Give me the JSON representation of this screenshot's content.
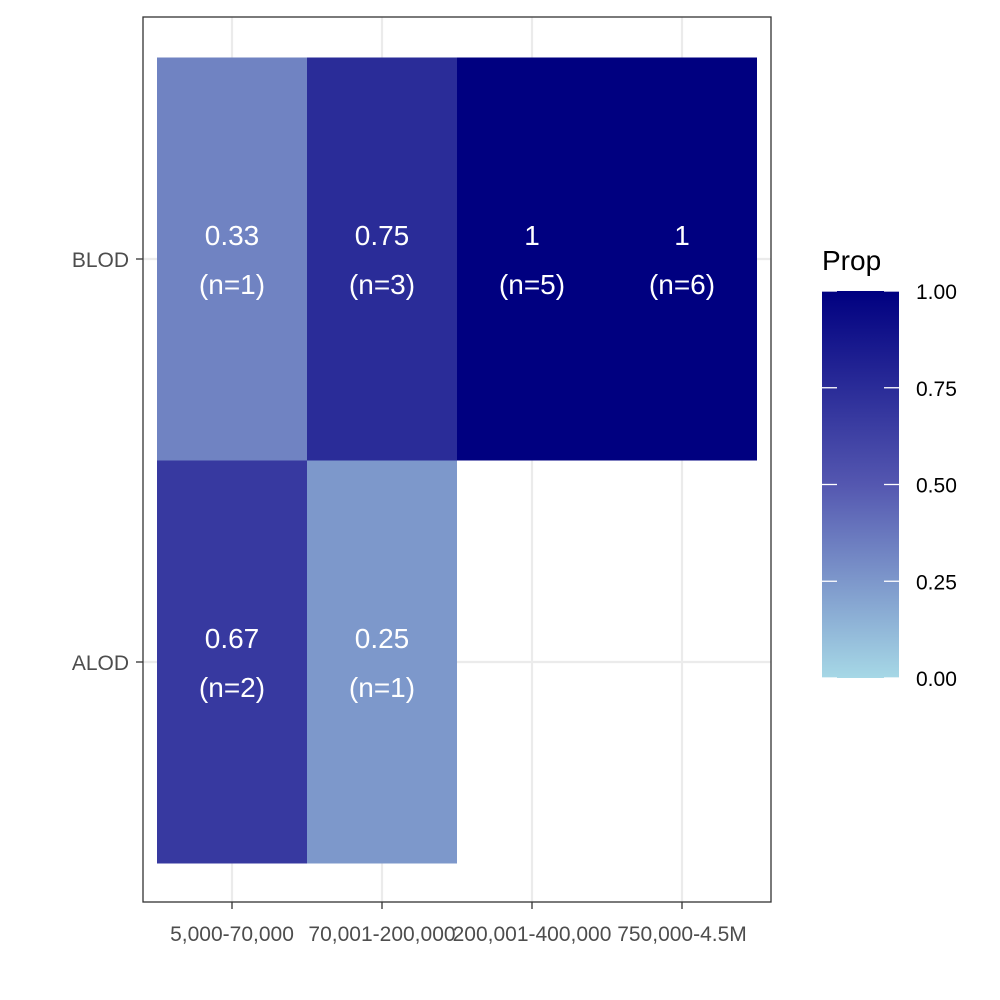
{
  "chart_data": {
    "type": "heatmap",
    "title": "",
    "xlabel": "",
    "ylabel": "",
    "x_categories": [
      "5,000-70,000",
      "70,001-200,000",
      "200,001-400,000",
      "750,000-4.5M"
    ],
    "y_categories": [
      "ALOD",
      "BLOD"
    ],
    "cells": [
      {
        "x": "5,000-70,000",
        "y": "BLOD",
        "prop": 0.33,
        "value_label": "0.33",
        "n_label": "(n=1)"
      },
      {
        "x": "70,001-200,000",
        "y": "BLOD",
        "prop": 0.75,
        "value_label": "0.75",
        "n_label": "(n=3)"
      },
      {
        "x": "200,001-400,000",
        "y": "BLOD",
        "prop": 1,
        "value_label": "1",
        "n_label": "(n=5)"
      },
      {
        "x": "750,000-4.5M",
        "y": "BLOD",
        "prop": 1,
        "value_label": "1",
        "n_label": "(n=6)"
      },
      {
        "x": "5,000-70,000",
        "y": "ALOD",
        "prop": 0.67,
        "value_label": "0.67",
        "n_label": "(n=2)"
      },
      {
        "x": "70,001-200,000",
        "y": "ALOD",
        "prop": 0.25,
        "value_label": "0.25",
        "n_label": "(n=1)"
      }
    ],
    "legend": {
      "title": "Prop",
      "position": "right",
      "range": [
        0,
        1
      ],
      "ticks": [
        0,
        0.25,
        0.5,
        0.75,
        1
      ],
      "tick_labels": [
        "0.00",
        "0.25",
        "0.50",
        "0.75",
        "1.00"
      ],
      "colors": [
        "#a6d8e6",
        "#000080"
      ]
    },
    "grid": true,
    "colors": {
      "panel_border": "#333333",
      "grid": "#ebebeb",
      "cell_text": "#ffffff"
    }
  }
}
